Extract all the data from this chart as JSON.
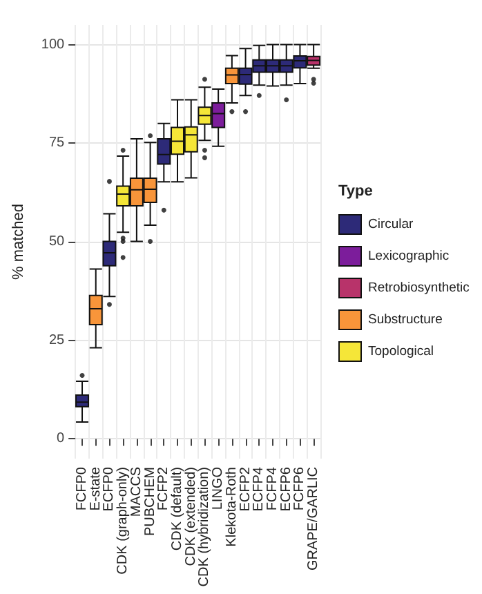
{
  "chart_data": {
    "type": "box",
    "ylabel": "% matched",
    "legend_title": "Type",
    "legend": "right",
    "grid": true,
    "categories": [
      "FCFP0",
      "E-state",
      "ECFP0",
      "CDK (graph-only)",
      "MACCS",
      "PUBCHEM",
      "FCFP2",
      "CDK (default)",
      "CDK (extended)",
      "CDK (hybridization)",
      "LINGO",
      "Klekota-Roth",
      "ECFP2",
      "ECFP4",
      "FCFP4",
      "ECFP6",
      "FCFP6",
      "GRAPE/GARLIC"
    ],
    "ylim": [
      -5,
      105
    ],
    "yticks": [
      0,
      25,
      50,
      75,
      100
    ],
    "series": [
      {
        "name": "Circular",
        "color": "#2d2a78",
        "boxes": [
          {
            "low": 4.3,
            "q1": 8.2,
            "median": 9.3,
            "q3": 11.1,
            "high": 14.6,
            "outliers": [
              16.1
            ]
          },
          null,
          {
            "low": 36.1,
            "q1": 43.9,
            "median": 47.2,
            "q3": 50.1,
            "high": 57.1,
            "outliers": [
              65.3,
              34.1
            ]
          },
          null,
          null,
          null,
          {
            "low": 65.2,
            "q1": 69.7,
            "median": 72.1,
            "q3": 76.1,
            "high": 80,
            "outliers": [
              58
            ]
          },
          null,
          null,
          null,
          null,
          null,
          {
            "low": 87.1,
            "q1": 90,
            "median": 92.4,
            "q3": 94,
            "high": 99,
            "outliers": [
              83
            ]
          },
          {
            "low": 89.7,
            "q1": 93,
            "median": 94.6,
            "q3": 96.1,
            "high": 99.8,
            "outliers": [
              87.1
            ]
          },
          {
            "low": 89.5,
            "q1": 93,
            "median": 94.6,
            "q3": 96.1,
            "high": 100
          },
          {
            "low": 89.7,
            "q1": 93,
            "median": 94.6,
            "q3": 96.1,
            "high": 100,
            "outliers": [
              86
            ]
          },
          {
            "low": 90.1,
            "q1": 94.1,
            "median": 95.9,
            "q3": 97.1,
            "high": 100
          },
          null
        ]
      },
      {
        "name": "Lexicographic",
        "color": "#7c1d9b",
        "boxes": [
          null,
          null,
          null,
          null,
          null,
          null,
          null,
          null,
          null,
          null,
          {
            "low": 74.2,
            "q1": 79,
            "median": 82.5,
            "q3": 85.2,
            "high": 88.7
          },
          null,
          null,
          null,
          null,
          null,
          null,
          null
        ]
      },
      {
        "name": "Retrobiosynthetic",
        "color": "#b8336a",
        "boxes": [
          null,
          null,
          null,
          null,
          null,
          null,
          null,
          null,
          null,
          null,
          null,
          null,
          null,
          null,
          null,
          null,
          null,
          {
            "low": 94,
            "q1": 94.8,
            "median": 96,
            "q3": 97,
            "high": 100,
            "outliers": [
              91.2,
              90.2
            ]
          }
        ]
      },
      {
        "name": "Substructure",
        "color": "#f8953a",
        "boxes": [
          null,
          {
            "low": 23.1,
            "q1": 29,
            "median": 33,
            "q3": 36.4,
            "high": 43.1
          },
          null,
          null,
          {
            "low": 50.1,
            "q1": 59.1,
            "median": 63.2,
            "q3": 66.1,
            "high": 76.1
          },
          {
            "low": 54.2,
            "q1": 60,
            "median": 63.3,
            "q3": 66.1,
            "high": 75.2,
            "outliers": [
              76.9,
              50.1
            ]
          },
          null,
          null,
          null,
          null,
          null,
          {
            "low": 85.2,
            "q1": 90.1,
            "median": 92.3,
            "q3": 94,
            "high": 97.2,
            "outliers": [
              83
            ]
          },
          null,
          null,
          null,
          null,
          null,
          null
        ]
      },
      {
        "name": "Topological",
        "color": "#f5e638",
        "boxes": [
          null,
          null,
          null,
          {
            "low": 52.4,
            "q1": 59.1,
            "median": 62.1,
            "q3": 64.1,
            "high": 71.7,
            "outliers": [
              73.2,
              50.9,
              50.1,
              46
            ]
          },
          null,
          null,
          null,
          {
            "low": 65.2,
            "q1": 72.2,
            "median": 75.5,
            "q3": 79,
            "high": 86
          },
          {
            "low": 66.2,
            "q1": 72.8,
            "median": 77.1,
            "q3": 79.1,
            "high": 86
          },
          {
            "low": 75.7,
            "q1": 79.8,
            "median": 82,
            "q3": 84.1,
            "high": 89.2,
            "outliers": [
              91.2,
              73.2,
              71.3
            ]
          },
          null,
          null,
          null,
          null,
          null,
          null,
          null,
          null
        ]
      }
    ]
  }
}
